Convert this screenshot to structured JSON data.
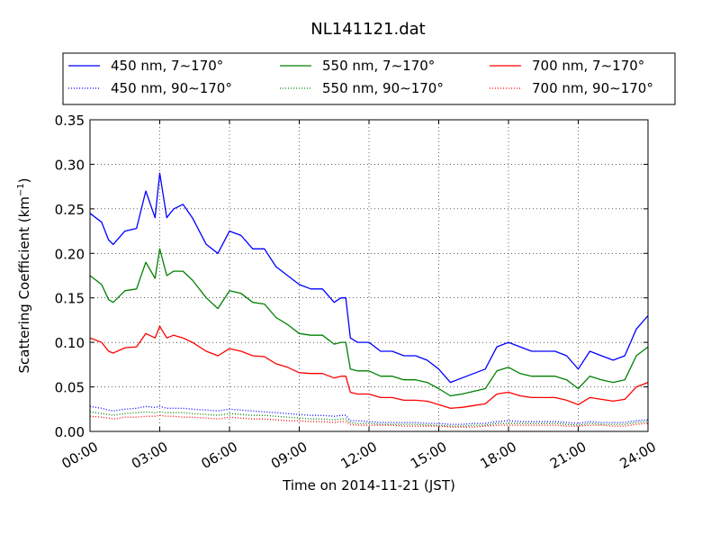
{
  "chart_data": {
    "type": "line",
    "title": "NL141121.dat",
    "xlabel": "Time on 2014-11-21 (JST)",
    "ylabel": "Scattering Coefficient (km",
    "ylabel_sup": "−1",
    "ylabel_close": ")",
    "x_unit": "hours",
    "xlim": [
      0,
      24
    ],
    "ylim": [
      0,
      0.35
    ],
    "grid": true,
    "legend_placement": "top, above plot",
    "x_ticks": [
      {
        "value": 0,
        "label": "00:00"
      },
      {
        "value": 3,
        "label": "03:00"
      },
      {
        "value": 6,
        "label": "06:00"
      },
      {
        "value": 9,
        "label": "09:00"
      },
      {
        "value": 12,
        "label": "12:00"
      },
      {
        "value": 15,
        "label": "15:00"
      },
      {
        "value": 18,
        "label": "18:00"
      },
      {
        "value": 21,
        "label": "21:00"
      },
      {
        "value": 24,
        "label": "24:00"
      }
    ],
    "y_ticks": [
      {
        "value": 0,
        "label": "0.00"
      },
      {
        "value": 0.05,
        "label": "0.05"
      },
      {
        "value": 0.1,
        "label": "0.10"
      },
      {
        "value": 0.15,
        "label": "0.15"
      },
      {
        "value": 0.2,
        "label": "0.20"
      },
      {
        "value": 0.25,
        "label": "0.25"
      },
      {
        "value": 0.3,
        "label": "0.30"
      },
      {
        "value": 0.35,
        "label": "0.35"
      }
    ],
    "x": [
      0,
      0.5,
      0.8,
      1,
      1.5,
      2,
      2.4,
      2.8,
      3,
      3.3,
      3.6,
      4,
      4.4,
      5,
      5.5,
      6,
      6.5,
      7,
      7.5,
      8,
      8.5,
      9,
      9.5,
      10,
      10.5,
      10.8,
      11,
      11.2,
      11.5,
      12,
      12.5,
      13,
      13.5,
      14,
      14.5,
      15,
      15.5,
      16,
      16.5,
      17,
      17.5,
      18,
      18.5,
      19,
      19.5,
      20,
      20.5,
      21,
      21.5,
      22,
      22.5,
      23,
      23.5,
      24
    ],
    "series": [
      {
        "name": "450 nm, 7∼170°",
        "color": "#0000ff",
        "style": "solid",
        "values": [
          0.245,
          0.235,
          0.215,
          0.21,
          0.225,
          0.228,
          0.27,
          0.24,
          0.29,
          0.24,
          0.25,
          0.255,
          0.24,
          0.21,
          0.2,
          0.225,
          0.22,
          0.205,
          0.205,
          0.185,
          0.175,
          0.165,
          0.16,
          0.16,
          0.145,
          0.15,
          0.15,
          0.105,
          0.1,
          0.1,
          0.09,
          0.09,
          0.085,
          0.085,
          0.08,
          0.07,
          0.055,
          0.06,
          0.065,
          0.07,
          0.095,
          0.1,
          0.095,
          0.09,
          0.09,
          0.09,
          0.085,
          0.07,
          0.09,
          0.085,
          0.08,
          0.085,
          0.115,
          0.13
        ]
      },
      {
        "name": "450 nm, 90∼170°",
        "color": "#0000ff",
        "style": "dotted",
        "values": [
          0.028,
          0.026,
          0.024,
          0.023,
          0.025,
          0.026,
          0.028,
          0.027,
          0.028,
          0.026,
          0.026,
          0.026,
          0.025,
          0.024,
          0.023,
          0.025,
          0.024,
          0.023,
          0.022,
          0.021,
          0.02,
          0.019,
          0.018,
          0.018,
          0.017,
          0.018,
          0.018,
          0.012,
          0.012,
          0.011,
          0.01,
          0.01,
          0.01,
          0.01,
          0.009,
          0.009,
          0.008,
          0.008,
          0.009,
          0.009,
          0.011,
          0.012,
          0.011,
          0.011,
          0.011,
          0.011,
          0.01,
          0.009,
          0.011,
          0.01,
          0.01,
          0.01,
          0.012,
          0.013
        ]
      },
      {
        "name": "550 nm, 7∼170°",
        "color": "#008000",
        "style": "solid",
        "values": [
          0.175,
          0.165,
          0.148,
          0.145,
          0.158,
          0.16,
          0.19,
          0.172,
          0.205,
          0.175,
          0.18,
          0.18,
          0.17,
          0.15,
          0.138,
          0.158,
          0.155,
          0.145,
          0.143,
          0.128,
          0.12,
          0.11,
          0.108,
          0.108,
          0.098,
          0.1,
          0.1,
          0.07,
          0.068,
          0.068,
          0.062,
          0.062,
          0.058,
          0.058,
          0.055,
          0.048,
          0.04,
          0.042,
          0.045,
          0.048,
          0.068,
          0.072,
          0.065,
          0.062,
          0.062,
          0.062,
          0.058,
          0.048,
          0.062,
          0.058,
          0.055,
          0.058,
          0.085,
          0.095
        ]
      },
      {
        "name": "550 nm, 90∼170°",
        "color": "#008000",
        "style": "dotted",
        "values": [
          0.022,
          0.02,
          0.019,
          0.018,
          0.02,
          0.021,
          0.022,
          0.021,
          0.022,
          0.021,
          0.021,
          0.021,
          0.02,
          0.019,
          0.018,
          0.02,
          0.019,
          0.018,
          0.018,
          0.017,
          0.016,
          0.015,
          0.014,
          0.014,
          0.013,
          0.014,
          0.014,
          0.01,
          0.009,
          0.009,
          0.008,
          0.008,
          0.008,
          0.008,
          0.007,
          0.007,
          0.006,
          0.006,
          0.007,
          0.007,
          0.009,
          0.009,
          0.009,
          0.009,
          0.009,
          0.009,
          0.008,
          0.007,
          0.009,
          0.008,
          0.008,
          0.008,
          0.01,
          0.011
        ]
      },
      {
        "name": "700 nm, 7∼170°",
        "color": "#ff0000",
        "style": "solid",
        "values": [
          0.105,
          0.1,
          0.09,
          0.088,
          0.094,
          0.095,
          0.11,
          0.105,
          0.118,
          0.105,
          0.108,
          0.105,
          0.1,
          0.09,
          0.085,
          0.093,
          0.09,
          0.085,
          0.084,
          0.076,
          0.072,
          0.066,
          0.065,
          0.065,
          0.06,
          0.062,
          0.062,
          0.044,
          0.042,
          0.042,
          0.038,
          0.038,
          0.035,
          0.035,
          0.034,
          0.03,
          0.026,
          0.027,
          0.029,
          0.031,
          0.042,
          0.044,
          0.04,
          0.038,
          0.038,
          0.038,
          0.035,
          0.03,
          0.038,
          0.036,
          0.034,
          0.036,
          0.05,
          0.055
        ]
      },
      {
        "name": "700 nm, 90∼170°",
        "color": "#ff0000",
        "style": "dotted",
        "values": [
          0.017,
          0.016,
          0.015,
          0.014,
          0.016,
          0.016,
          0.017,
          0.017,
          0.018,
          0.017,
          0.017,
          0.016,
          0.016,
          0.015,
          0.014,
          0.016,
          0.015,
          0.014,
          0.014,
          0.013,
          0.012,
          0.012,
          0.011,
          0.011,
          0.01,
          0.011,
          0.011,
          0.008,
          0.007,
          0.007,
          0.007,
          0.007,
          0.006,
          0.006,
          0.006,
          0.006,
          0.005,
          0.005,
          0.005,
          0.006,
          0.007,
          0.007,
          0.007,
          0.007,
          0.007,
          0.007,
          0.006,
          0.006,
          0.007,
          0.007,
          0.006,
          0.006,
          0.008,
          0.009
        ]
      }
    ]
  }
}
